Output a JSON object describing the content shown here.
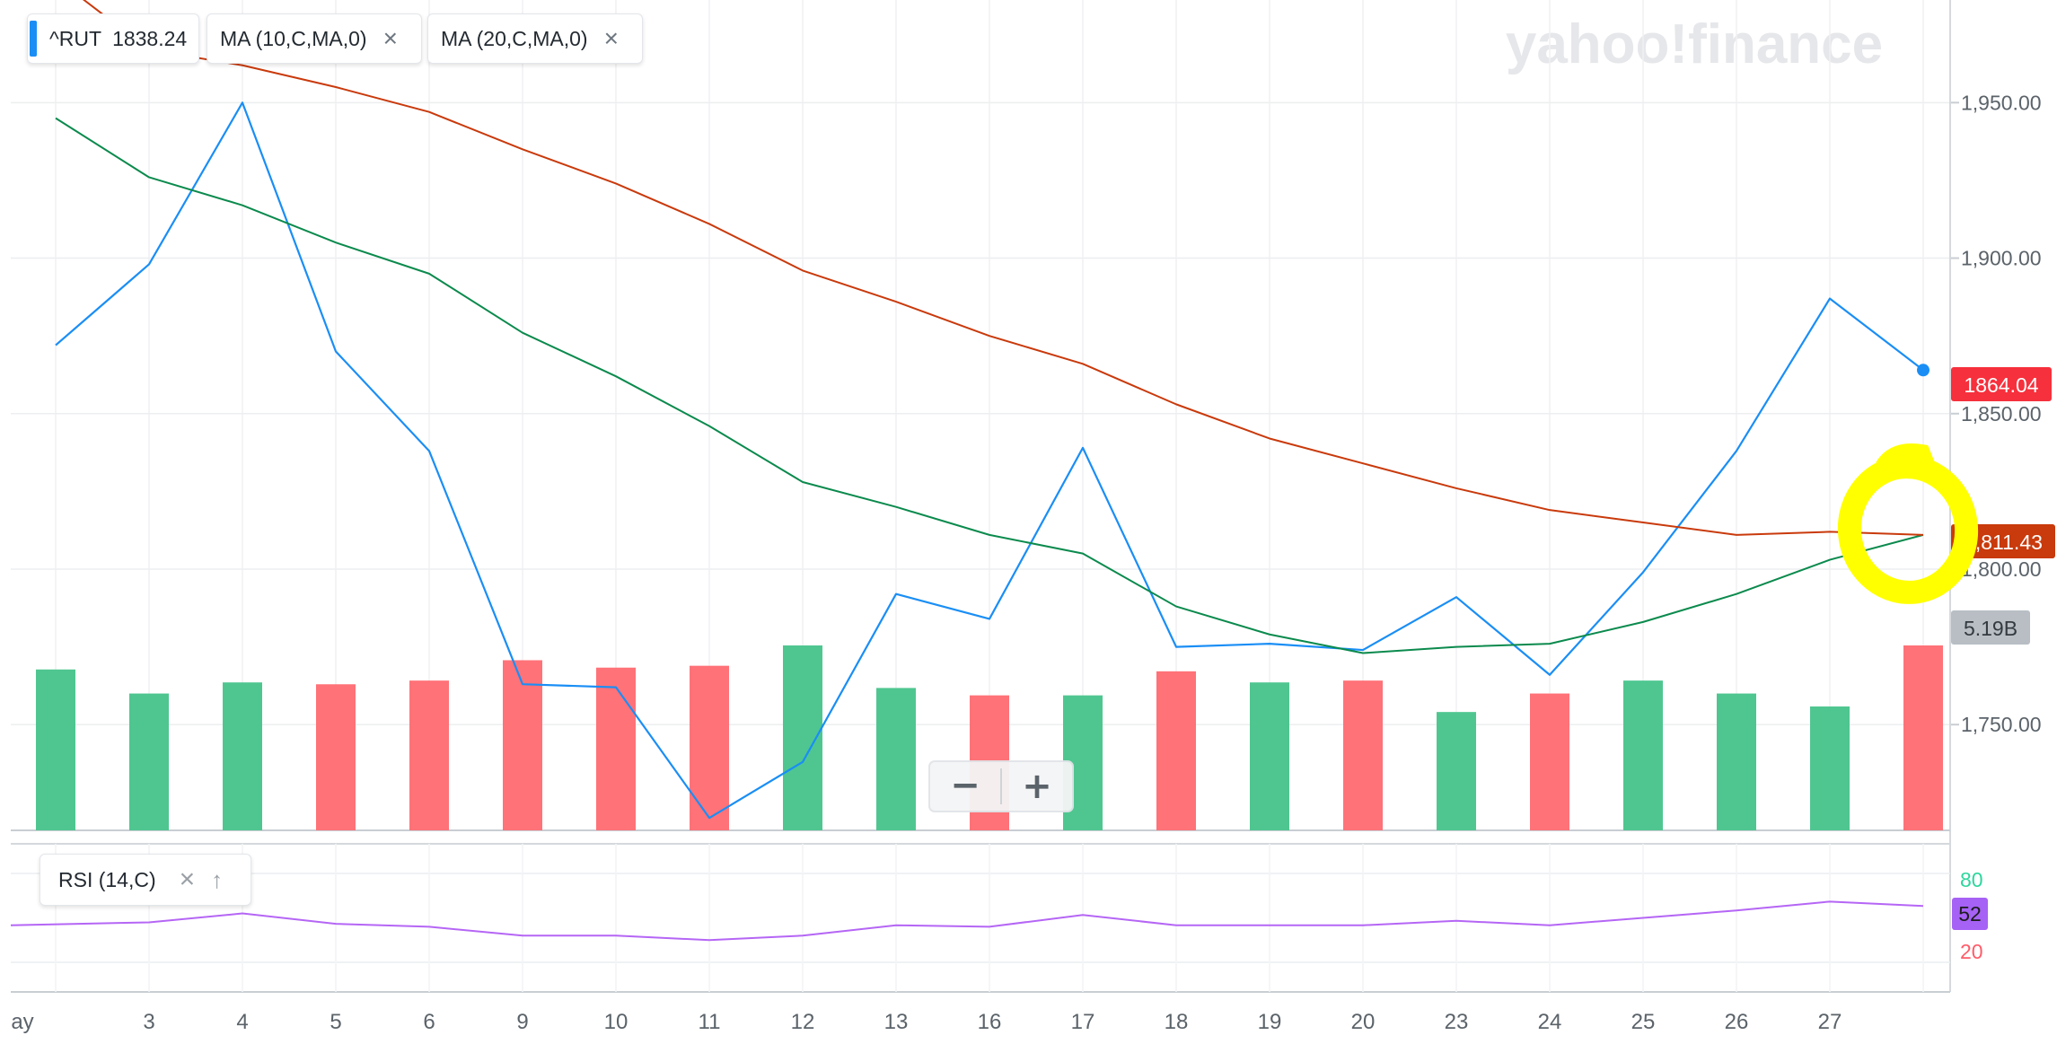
{
  "brand": {
    "watermark": "yahoo!finance"
  },
  "legend": {
    "symbol": "^RUT",
    "symbol_value": "1838.24",
    "ma10_label": "MA (10,C,MA,0)",
    "ma20_label": "MA (20,C,MA,0)",
    "close_glyph": "×"
  },
  "rsi": {
    "label": "RSI (14,C)",
    "value_badge": "52",
    "level_high": "80",
    "level_low": "20"
  },
  "zoom": {
    "minus": "−",
    "plus": "+"
  },
  "price_badges": {
    "last": "1864.04",
    "ma": "1,811.43",
    "volume": "5.19B"
  },
  "colors": {
    "price_line": "#1a8ef5",
    "ma10": "#0b8a4d",
    "ma20": "#c93a0c",
    "volume_up": "#4fc690",
    "volume_down": "#ff7278",
    "rsi_line": "#b566f5",
    "badge_last": "#f6303c",
    "badge_ma": "#c93a0c",
    "badge_volume": "#b8bec4",
    "rsi_badge": "#a661f5",
    "level_high_color": "#2ed69e",
    "level_low_color": "#ff5c69",
    "highlight": "#ffff00"
  },
  "chart_data": {
    "type": "line",
    "x_tick_labels": [
      "ay",
      "3",
      "4",
      "5",
      "6",
      "9",
      "10",
      "11",
      "12",
      "13",
      "16",
      "17",
      "18",
      "19",
      "20",
      "23",
      "24",
      "25",
      "26",
      "27"
    ],
    "y_ticks": [
      "1,750.00",
      "1,800.00",
      "1,850.00",
      "1,900.00",
      "1,950.00"
    ],
    "ylim": [
      1716,
      1983
    ],
    "x": [
      "",
      "3",
      "4",
      "5",
      "6",
      "9",
      "10",
      "11",
      "12",
      "13",
      "16",
      "17",
      "18",
      "19",
      "20",
      "23",
      "24",
      "25",
      "26",
      "27",
      ""
    ],
    "series": [
      {
        "name": "^RUT",
        "values": [
          1872,
          1898,
          1950,
          1870,
          1838,
          1763,
          1762,
          1720,
          1738,
          1792,
          1784,
          1839,
          1775,
          1776,
          1774,
          1791,
          1766,
          1799,
          1838,
          1887,
          1864
        ]
      },
      {
        "name": "MA (10,C,MA,0)",
        "values": [
          1945,
          1926,
          1917,
          1905,
          1895,
          1876,
          1862,
          1846,
          1828,
          1820,
          1811,
          1805,
          1788,
          1779,
          1773,
          1775,
          1776,
          1783,
          1792,
          1803,
          1811
        ]
      },
      {
        "name": "MA (20,C,MA,0)",
        "values": [
          1990,
          1967,
          1962,
          1955,
          1947,
          1935,
          1924,
          1911,
          1896,
          1886,
          1875,
          1866,
          1853,
          1842,
          1834,
          1826,
          1819,
          1815,
          1811,
          1812,
          1811
        ]
      }
    ],
    "volume": {
      "values": [
        0.87,
        0.74,
        0.8,
        0.79,
        0.81,
        0.92,
        0.88,
        0.89,
        1.0,
        0.77,
        0.73,
        0.73,
        0.86,
        0.8,
        0.81,
        0.64,
        0.74,
        0.81,
        0.74,
        0.67,
        1.0
      ],
      "direction": [
        "up",
        "up",
        "up",
        "down",
        "down",
        "down",
        "down",
        "down",
        "up",
        "up",
        "down",
        "up",
        "down",
        "up",
        "down",
        "up",
        "down",
        "up",
        "up",
        "up",
        "down"
      ]
    },
    "rsi": {
      "values": [
        45,
        47,
        53,
        46,
        44,
        38,
        38,
        35,
        38,
        45,
        44,
        52,
        45,
        45,
        45,
        48,
        45,
        50,
        55,
        61,
        58
      ],
      "ylim": [
        0,
        100
      ],
      "levels": [
        80,
        20
      ]
    },
    "annotation": "yellow hand-drawn circle around the last MA values"
  }
}
